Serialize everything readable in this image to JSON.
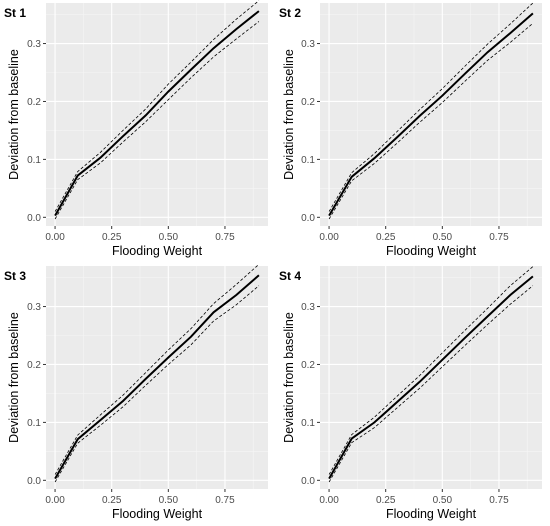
{
  "chart_data": [
    {
      "type": "line",
      "title": "St 1",
      "xlabel": "Flooding Weight",
      "ylabel": "Deviation from baseline",
      "xlim": [
        -0.04,
        0.94
      ],
      "ylim": [
        -0.015,
        0.37
      ],
      "xticks": [
        "0.00",
        "0.25",
        "0.50",
        "0.75"
      ],
      "yticks": [
        "0.0",
        "0.1",
        "0.2",
        "0.3"
      ],
      "grid": true,
      "x": [
        0.0,
        0.1,
        0.2,
        0.3,
        0.4,
        0.5,
        0.6,
        0.7,
        0.8,
        0.9
      ],
      "series": [
        {
          "values": [
            0.003,
            0.072,
            0.103,
            0.14,
            0.176,
            0.217,
            0.255,
            0.292,
            0.325,
            0.356
          ]
        },
        {
          "values": [
            0.01,
            0.079,
            0.112,
            0.15,
            0.187,
            0.23,
            0.268,
            0.307,
            0.342,
            0.374
          ]
        },
        {
          "values": [
            -0.003,
            0.065,
            0.094,
            0.13,
            0.165,
            0.203,
            0.241,
            0.277,
            0.308,
            0.338
          ]
        }
      ]
    },
    {
      "type": "line",
      "title": "St 2",
      "xlabel": "Flooding Weight",
      "ylabel": "Deviation from baseline",
      "xlim": [
        -0.04,
        0.94
      ],
      "ylim": [
        -0.015,
        0.37
      ],
      "xticks": [
        "0.00",
        "0.25",
        "0.50",
        "0.75"
      ],
      "yticks": [
        "0.0",
        "0.1",
        "0.2",
        "0.3"
      ],
      "grid": true,
      "x": [
        0.0,
        0.1,
        0.2,
        0.3,
        0.4,
        0.5,
        0.6,
        0.7,
        0.8,
        0.9
      ],
      "series": [
        {
          "values": [
            0.003,
            0.07,
            0.102,
            0.138,
            0.175,
            0.21,
            0.248,
            0.285,
            0.318,
            0.352
          ]
        },
        {
          "values": [
            0.01,
            0.077,
            0.11,
            0.148,
            0.186,
            0.222,
            0.261,
            0.299,
            0.334,
            0.37
          ]
        },
        {
          "values": [
            -0.003,
            0.063,
            0.093,
            0.128,
            0.164,
            0.198,
            0.235,
            0.271,
            0.302,
            0.335
          ]
        }
      ]
    },
    {
      "type": "line",
      "title": "St 3",
      "xlabel": "Flooding Weight",
      "ylabel": "Deviation from baseline",
      "xlim": [
        -0.04,
        0.94
      ],
      "ylim": [
        -0.015,
        0.37
      ],
      "xticks": [
        "0.00",
        "0.25",
        "0.50",
        "0.75"
      ],
      "yticks": [
        "0.0",
        "0.1",
        "0.2",
        "0.3"
      ],
      "grid": true,
      "x": [
        0.0,
        0.1,
        0.2,
        0.3,
        0.4,
        0.5,
        0.6,
        0.7,
        0.8,
        0.9
      ],
      "series": [
        {
          "values": [
            0.003,
            0.071,
            0.104,
            0.137,
            0.175,
            0.212,
            0.248,
            0.29,
            0.32,
            0.354
          ]
        },
        {
          "values": [
            0.01,
            0.078,
            0.113,
            0.147,
            0.186,
            0.225,
            0.262,
            0.305,
            0.338,
            0.373
          ]
        },
        {
          "values": [
            -0.003,
            0.064,
            0.095,
            0.127,
            0.164,
            0.2,
            0.234,
            0.275,
            0.303,
            0.336
          ]
        }
      ]
    },
    {
      "type": "line",
      "title": "St 4",
      "xlabel": "Flooding Weight",
      "ylabel": "Deviation from baseline",
      "xlim": [
        -0.04,
        0.94
      ],
      "ylim": [
        -0.015,
        0.37
      ],
      "xticks": [
        "0.00",
        "0.25",
        "0.50",
        "0.75"
      ],
      "yticks": [
        "0.0",
        "0.1",
        "0.2",
        "0.3"
      ],
      "grid": true,
      "x": [
        0.0,
        0.1,
        0.2,
        0.3,
        0.4,
        0.5,
        0.6,
        0.7,
        0.8,
        0.9
      ],
      "series": [
        {
          "values": [
            0.003,
            0.072,
            0.1,
            0.135,
            0.17,
            0.208,
            0.246,
            0.283,
            0.32,
            0.352
          ]
        },
        {
          "values": [
            0.01,
            0.079,
            0.109,
            0.145,
            0.181,
            0.22,
            0.259,
            0.297,
            0.336,
            0.369
          ]
        },
        {
          "values": [
            -0.003,
            0.065,
            0.091,
            0.125,
            0.159,
            0.196,
            0.233,
            0.269,
            0.304,
            0.336
          ]
        }
      ]
    }
  ],
  "colors": {
    "panel_background": "#ebebeb",
    "major_grid": "#ffffff",
    "minor_grid": "#f5f5f5",
    "line": "#000000",
    "tick_text": "#4d4d4d"
  }
}
